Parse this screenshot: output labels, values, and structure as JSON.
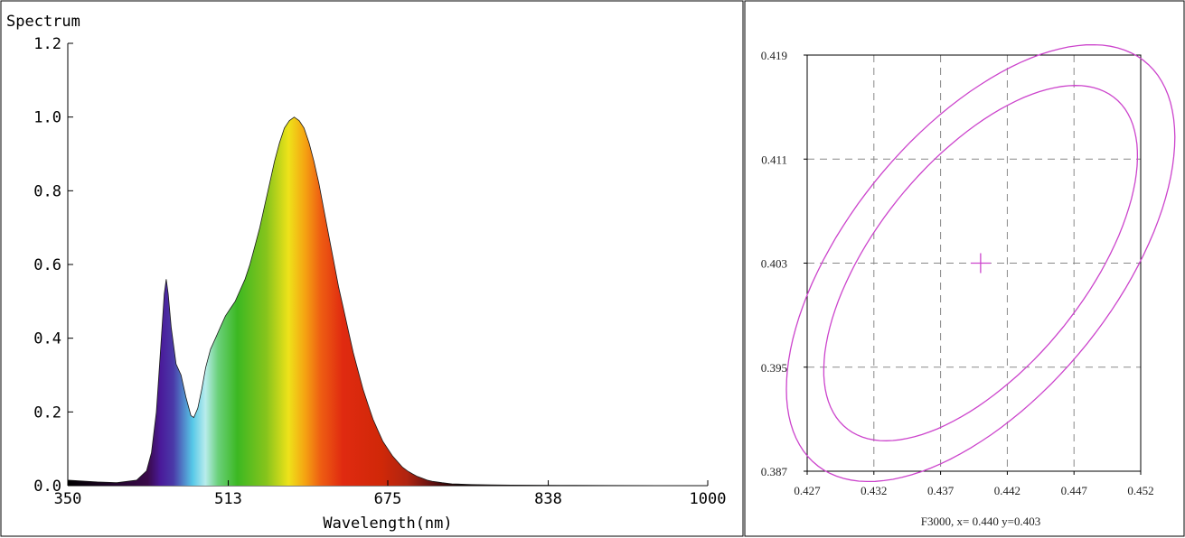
{
  "chart_data": [
    {
      "type": "area",
      "title": "Spectrum",
      "xlabel": "Wavelength(nm)",
      "ylabel": "",
      "xlim": [
        350,
        1000
      ],
      "ylim": [
        0,
        1.2
      ],
      "xticks": [
        "350",
        "513",
        "675",
        "838",
        "1000"
      ],
      "yticks": [
        "0.0",
        "0.2",
        "0.4",
        "0.6",
        "0.8",
        "1.0",
        "1.2"
      ],
      "x": [
        350,
        380,
        400,
        420,
        430,
        435,
        440,
        445,
        448,
        450,
        452,
        455,
        460,
        465,
        470,
        475,
        478,
        482,
        486,
        490,
        495,
        500,
        505,
        510,
        515,
        520,
        525,
        530,
        535,
        540,
        545,
        550,
        555,
        560,
        565,
        570,
        575,
        580,
        585,
        590,
        595,
        600,
        605,
        610,
        615,
        620,
        625,
        630,
        635,
        640,
        645,
        650,
        655,
        660,
        665,
        670,
        675,
        680,
        685,
        690,
        695,
        700,
        705,
        710,
        715,
        720,
        730,
        740,
        750,
        760,
        780,
        800,
        850,
        900,
        950,
        1000
      ],
      "y": [
        0.015,
        0.01,
        0.008,
        0.015,
        0.04,
        0.09,
        0.2,
        0.4,
        0.52,
        0.56,
        0.52,
        0.43,
        0.33,
        0.3,
        0.24,
        0.19,
        0.185,
        0.21,
        0.26,
        0.32,
        0.37,
        0.4,
        0.43,
        0.46,
        0.48,
        0.5,
        0.53,
        0.56,
        0.6,
        0.65,
        0.7,
        0.76,
        0.82,
        0.88,
        0.93,
        0.97,
        0.99,
        1.0,
        0.99,
        0.97,
        0.93,
        0.88,
        0.82,
        0.75,
        0.68,
        0.61,
        0.54,
        0.48,
        0.42,
        0.36,
        0.31,
        0.26,
        0.22,
        0.18,
        0.15,
        0.12,
        0.1,
        0.08,
        0.065,
        0.05,
        0.04,
        0.032,
        0.025,
        0.02,
        0.015,
        0.012,
        0.008,
        0.005,
        0.004,
        0.003,
        0.002,
        0.0015,
        0.001,
        0.0005,
        0.0003,
        0.0002
      ]
    },
    {
      "type": "line",
      "title": "",
      "xlabel": "",
      "ylabel": "",
      "xlim": [
        0.427,
        0.452
      ],
      "ylim": [
        0.387,
        0.419
      ],
      "xticks": [
        "0.427",
        "0.432",
        "0.437",
        "0.442",
        "0.447",
        "0.452"
      ],
      "yticks": [
        "0.387",
        "0.395",
        "0.403",
        "0.411",
        "0.419"
      ],
      "grid": true,
      "caption": "F3000,  x= 0.440 y=0.403",
      "center": {
        "x": 0.44,
        "y": 0.403
      },
      "color": "#cc44cc",
      "ellipses": [
        {
          "name": "",
          "cx": 0.44,
          "cy": 0.403,
          "semi_major": 0.0162,
          "semi_minor": 0.0079,
          "angle_deg": 52
        },
        {
          "name": "",
          "cx": 0.44,
          "cy": 0.403,
          "semi_major": 0.0198,
          "semi_minor": 0.0101,
          "angle_deg": 52
        }
      ]
    }
  ]
}
